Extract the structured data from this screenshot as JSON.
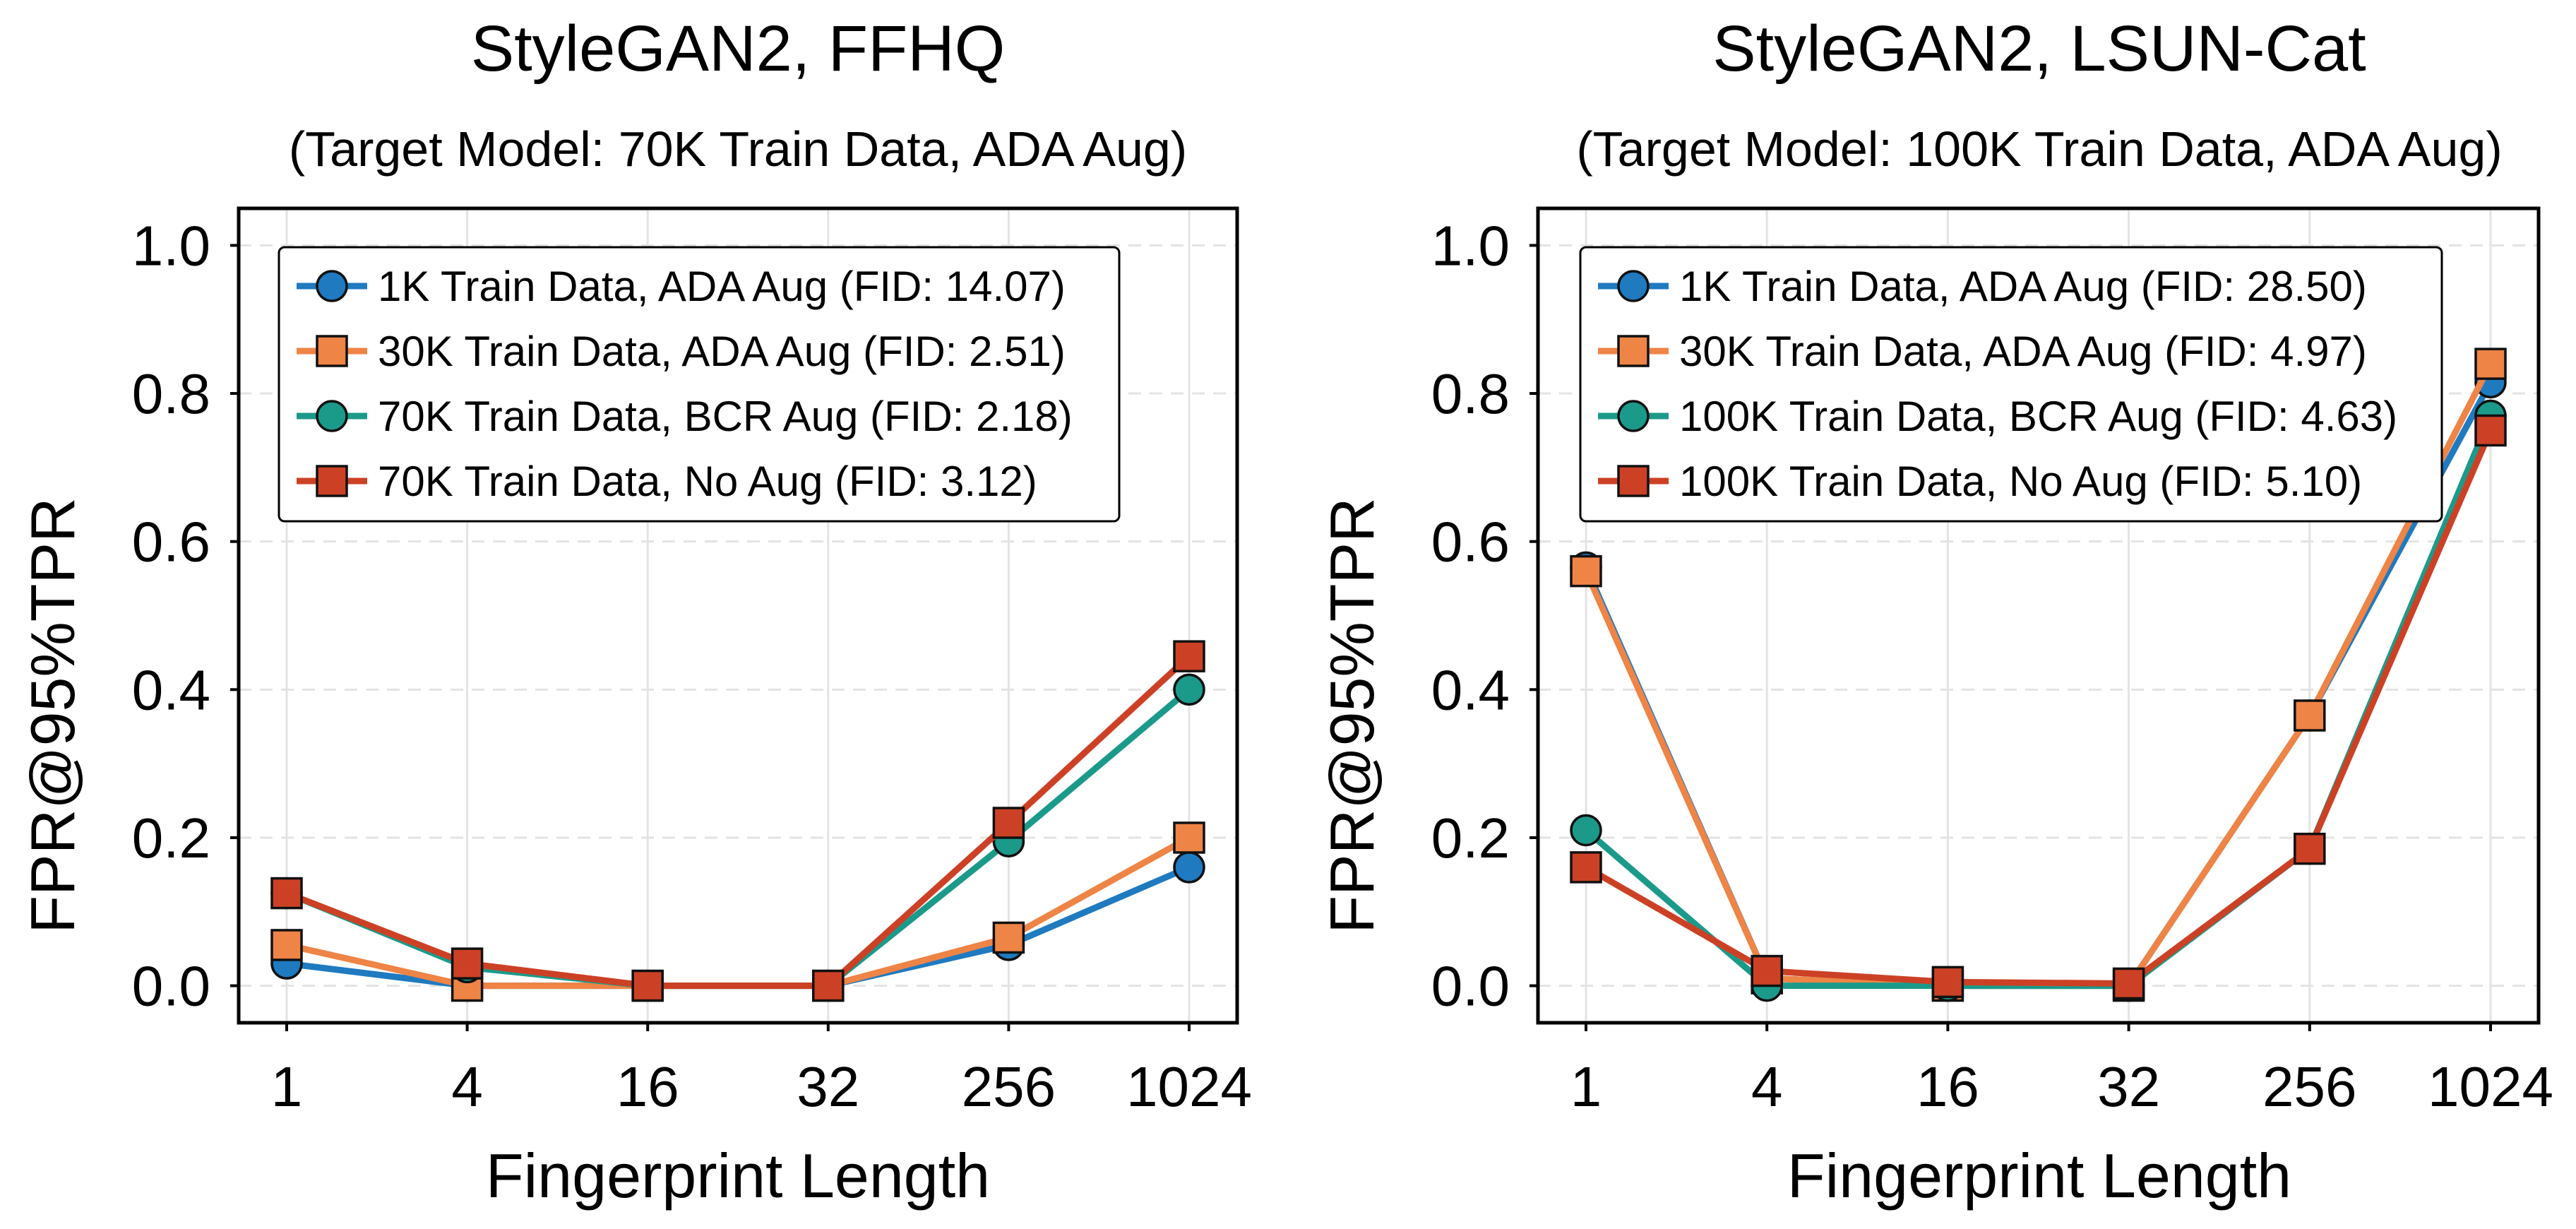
{
  "colors": {
    "blue": "#1f7ac0",
    "orange": "#ee8445",
    "teal": "#1b9a8a",
    "red": "#cc4125"
  },
  "chart_data": [
    {
      "type": "line",
      "title": "StyleGAN2, FFHQ",
      "subtitle": "(Target Model: 70K Train Data, ADA Aug)",
      "xlabel": "Fingerprint Length",
      "ylabel": "FPR@95%TPR",
      "categories": [
        "1",
        "4",
        "16",
        "32",
        "256",
        "1024"
      ],
      "ylim": [
        -0.05,
        1.05
      ],
      "yticks": [
        "0.0",
        "0.2",
        "0.4",
        "0.6",
        "0.8",
        "1.0"
      ],
      "grid": true,
      "legend_position": "top-left",
      "series": [
        {
          "name": "1K Train Data, ADA Aug (FID: 14.07)",
          "marker": "circle",
          "color": "blue",
          "values": [
            0.03,
            0.0,
            0.0,
            0.0,
            0.055,
            0.16
          ]
        },
        {
          "name": "30K Train Data, ADA Aug (FID: 2.51)",
          "marker": "square",
          "color": "orange",
          "values": [
            0.055,
            0.0,
            0.0,
            0.0,
            0.065,
            0.2
          ]
        },
        {
          "name": "70K Train Data, BCR Aug (FID: 2.18)",
          "marker": "circle",
          "color": "teal",
          "values": [
            0.125,
            0.025,
            0.0,
            0.0,
            0.195,
            0.4
          ]
        },
        {
          "name": "70K Train Data, No Aug (FID: 3.12)",
          "marker": "square",
          "color": "red",
          "values": [
            0.125,
            0.03,
            0.0,
            0.0,
            0.22,
            0.445
          ]
        }
      ]
    },
    {
      "type": "line",
      "title": "StyleGAN2, LSUN-Cat",
      "subtitle": "(Target Model: 100K Train Data, ADA Aug)",
      "xlabel": "Fingerprint Length",
      "ylabel": "FPR@95%TPR",
      "categories": [
        "1",
        "4",
        "16",
        "32",
        "256",
        "1024"
      ],
      "ylim": [
        -0.05,
        1.05
      ],
      "yticks": [
        "0.0",
        "0.2",
        "0.4",
        "0.6",
        "0.8",
        "1.0"
      ],
      "grid": true,
      "legend_position": "top-left",
      "series": [
        {
          "name": "1K Train Data, ADA Aug (FID: 28.50)",
          "marker": "circle",
          "color": "blue",
          "values": [
            0.565,
            0.01,
            0.0,
            0.0,
            0.365,
            0.815
          ]
        },
        {
          "name": "30K Train Data, ADA Aug (FID: 4.97)",
          "marker": "square",
          "color": "orange",
          "values": [
            0.56,
            0.01,
            0.0,
            0.0,
            0.365,
            0.84
          ]
        },
        {
          "name": "100K Train Data, BCR Aug (FID: 4.63)",
          "marker": "circle",
          "color": "teal",
          "values": [
            0.21,
            0.0,
            0.0,
            0.0,
            0.185,
            0.77
          ]
        },
        {
          "name": "100K Train Data, No Aug (FID: 5.10)",
          "marker": "square",
          "color": "red",
          "values": [
            0.16,
            0.02,
            0.005,
            0.003,
            0.185,
            0.75
          ]
        }
      ]
    }
  ]
}
